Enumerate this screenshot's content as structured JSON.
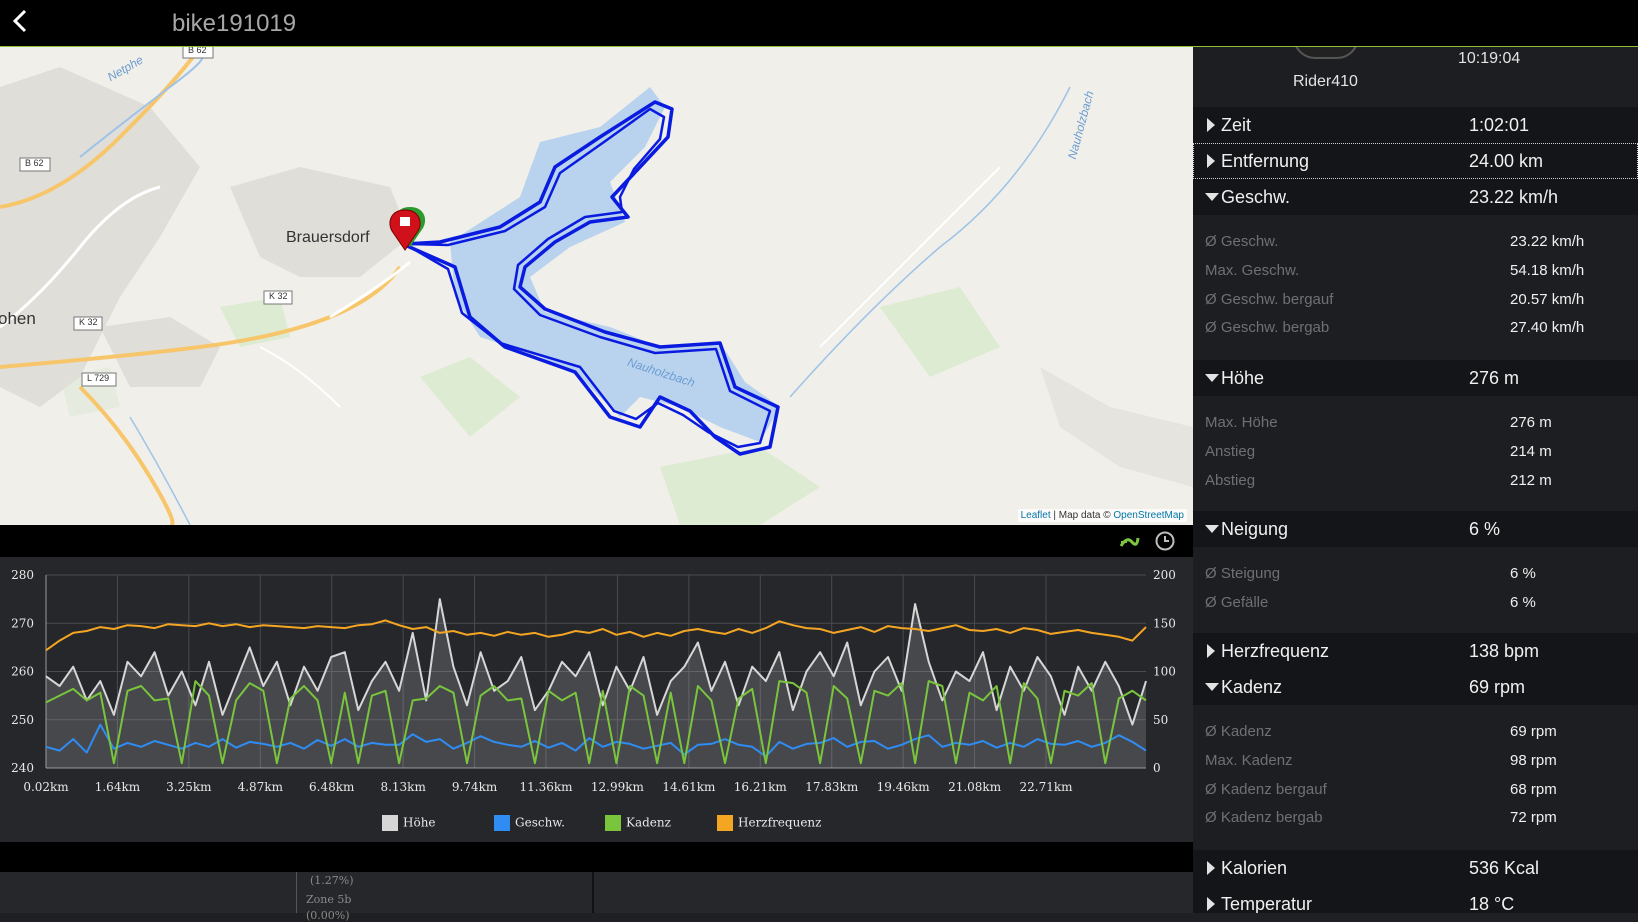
{
  "header": {
    "title": "bike191019",
    "back_label": "<"
  },
  "map": {
    "labels": {
      "brauersdorf": "Brauersdorf",
      "ohen": "ohen",
      "netphe": "Netphe",
      "nauholzbach_river": "Nauholzbach",
      "nauholzbach_lake": "Nauholzbach"
    },
    "road_badges": {
      "b62_top": "B 62",
      "b62_left": "B 62",
      "k32_a": "K 32",
      "k32_b": "K 32",
      "l729": "L 729"
    },
    "attribution": {
      "leaflet": "Leaflet",
      "sep": " | Map data © ",
      "osm": "OpenStreetMap"
    },
    "colors": {
      "track": "#0a1be0",
      "lake": "#b9d3ef",
      "marker": "#d0101a"
    }
  },
  "chart_toolbar": {
    "distance_icon": "distance-icon",
    "time_icon": "clock-icon"
  },
  "chart_data": {
    "type": "line",
    "x_ticks": [
      "0.02km",
      "1.64km",
      "3.25km",
      "4.87km",
      "6.48km",
      "8.13km",
      "9.74km",
      "11.36km",
      "12.99km",
      "14.61km",
      "16.21km",
      "17.83km",
      "19.46km",
      "21.08km",
      "22.71km"
    ],
    "y_left_ticks": [
      "280",
      "270",
      "260",
      "250",
      "240"
    ],
    "y_right_ticks": [
      "200",
      "150",
      "100",
      "50",
      "0"
    ],
    "ylim_left": [
      240,
      280
    ],
    "ylim_right": [
      0,
      200
    ],
    "legend_position": "bottom",
    "series": [
      {
        "name": "Höhe",
        "color": "#d6d6d6",
        "axis": "left",
        "values": [
          259,
          257,
          261,
          254,
          258,
          251,
          262,
          259,
          264,
          255,
          260,
          253,
          262,
          251,
          258,
          265,
          257,
          262,
          253,
          261,
          256,
          263,
          264,
          252,
          258,
          262,
          256,
          268,
          254,
          275,
          261,
          253,
          264,
          256,
          258,
          263,
          252,
          256,
          262,
          259,
          264,
          253,
          261,
          256,
          263,
          251,
          258,
          261,
          266,
          256,
          262,
          253,
          261,
          258,
          264,
          252,
          260,
          264,
          259,
          266,
          253,
          260,
          263,
          256,
          274,
          262,
          254,
          260,
          258,
          264,
          252,
          261,
          256,
          263,
          259,
          251,
          261,
          256,
          262,
          257,
          249,
          258
        ]
      },
      {
        "name": "Geschw.",
        "color": "#2f8cf2",
        "axis": "right",
        "values": [
          22,
          18,
          30,
          16,
          45,
          20,
          26,
          22,
          28,
          24,
          20,
          26,
          22,
          30,
          21,
          27,
          25,
          22,
          26,
          20,
          29,
          23,
          30,
          22,
          26,
          24,
          24,
          35,
          27,
          30,
          20,
          26,
          33,
          27,
          24,
          22,
          28,
          21,
          26,
          18,
          31,
          22,
          27,
          25,
          20,
          23,
          26,
          14,
          24,
          25,
          30,
          24,
          22,
          12,
          27,
          20,
          25,
          26,
          31,
          22,
          27,
          28,
          20,
          24,
          30,
          34,
          22,
          26,
          24,
          28,
          21,
          26,
          22,
          30,
          25,
          24,
          28,
          22,
          26,
          34,
          27,
          18
        ]
      },
      {
        "name": "Kadenz",
        "color": "#79c53c",
        "axis": "right",
        "values": [
          68,
          75,
          82,
          70,
          78,
          5,
          80,
          85,
          70,
          72,
          5,
          90,
          75,
          5,
          70,
          88,
          80,
          5,
          72,
          85,
          70,
          5,
          78,
          5,
          75,
          80,
          5,
          70,
          72,
          85,
          78,
          5,
          75,
          85,
          70,
          72,
          5,
          80,
          70,
          78,
          5,
          80,
          5,
          85,
          75,
          5,
          78,
          5,
          85,
          70,
          5,
          72,
          82,
          5,
          90,
          88,
          78,
          5,
          85,
          72,
          5,
          80,
          75,
          88,
          5,
          90,
          85,
          5,
          78,
          70,
          85,
          5,
          88,
          72,
          5,
          80,
          75,
          88,
          5,
          72,
          80,
          70
        ]
      },
      {
        "name": "Herzfrequenz",
        "color": "#f4a623",
        "axis": "right",
        "values": [
          122,
          132,
          140,
          142,
          146,
          144,
          148,
          147,
          145,
          149,
          148,
          147,
          150,
          147,
          149,
          146,
          148,
          147,
          146,
          145,
          147,
          146,
          145,
          148,
          149,
          153,
          148,
          144,
          146,
          140,
          142,
          138,
          140,
          137,
          141,
          138,
          140,
          136,
          138,
          142,
          140,
          144,
          138,
          141,
          136,
          140,
          137,
          142,
          144,
          141,
          139,
          144,
          140,
          145,
          152,
          148,
          145,
          144,
          140,
          143,
          146,
          141,
          147,
          145,
          144,
          142,
          145,
          148,
          143,
          142,
          144,
          140,
          145,
          143,
          139,
          141,
          143,
          140,
          138,
          136,
          132,
          146
        ]
      }
    ]
  },
  "zone_panel": {
    "pct": "(1.27%)",
    "zone": "Zone 5b",
    "pct2": "(0.00%)"
  },
  "right_panel": {
    "rider": "Rider410",
    "start_time": "10:19:04",
    "rows": [
      {
        "label": "Zeit",
        "value": "1:02:01",
        "open": false
      },
      {
        "label": "Entfernung",
        "value": "24.00 km",
        "open": false
      },
      {
        "label": "Geschw.",
        "value": "23.22 km/h",
        "open": true
      },
      {
        "label": "Höhe",
        "value": "276 m",
        "open": true
      },
      {
        "label": "Neigung",
        "value": "6 %",
        "open": true
      },
      {
        "label": "Herzfrequenz",
        "value": "138 bpm",
        "open": false
      },
      {
        "label": "Kadenz",
        "value": "69 rpm",
        "open": true
      },
      {
        "label": "Kalorien",
        "value": "536 Kcal",
        "open": false
      },
      {
        "label": "Temperatur",
        "value": "18 °C",
        "open": false
      }
    ],
    "speed_details": [
      {
        "label": "Ø Geschw.",
        "value": "23.22 km/h"
      },
      {
        "label": "Max. Geschw.",
        "value": "54.18 km/h"
      },
      {
        "label": "Ø Geschw. bergauf",
        "value": "20.57 km/h"
      },
      {
        "label": "Ø Geschw. bergab",
        "value": "27.40 km/h"
      }
    ],
    "altitude_details": [
      {
        "label": "Max. Höhe",
        "value": "276 m"
      },
      {
        "label": "Anstieg",
        "value": "214 m"
      },
      {
        "label": "Abstieg",
        "value": "212 m"
      }
    ],
    "slope_details": [
      {
        "label": "Ø Steigung",
        "value": "6 %"
      },
      {
        "label": "Ø Gefälle",
        "value": "6 %"
      }
    ],
    "cadence_details": [
      {
        "label": "Ø Kadenz",
        "value": "69 rpm"
      },
      {
        "label": "Max. Kadenz",
        "value": "98 rpm"
      },
      {
        "label": "Ø Kadenz bergauf",
        "value": "68 rpm"
      },
      {
        "label": "Ø Kadenz bergab",
        "value": "72 rpm"
      }
    ]
  }
}
